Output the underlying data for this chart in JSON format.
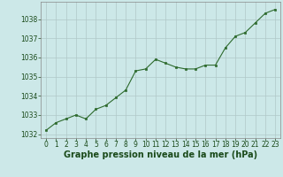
{
  "x": [
    0,
    1,
    2,
    3,
    4,
    5,
    6,
    7,
    8,
    9,
    10,
    11,
    12,
    13,
    14,
    15,
    16,
    17,
    18,
    19,
    20,
    21,
    22,
    23
  ],
  "y": [
    1032.2,
    1032.6,
    1032.8,
    1033.0,
    1032.8,
    1033.3,
    1033.5,
    1033.9,
    1034.3,
    1035.3,
    1035.4,
    1035.9,
    1035.7,
    1035.5,
    1035.4,
    1035.4,
    1035.6,
    1035.6,
    1036.5,
    1037.1,
    1037.3,
    1037.8,
    1038.3,
    1038.5
  ],
  "line_color": "#2d6a2d",
  "marker_color": "#2d6a2d",
  "bg_color": "#cce8e8",
  "grid_color": "#b0c8c8",
  "axis_label_color": "#1a4a1a",
  "xlabel": "Graphe pression niveau de la mer (hPa)",
  "ylim": [
    1031.8,
    1038.9
  ],
  "yticks": [
    1032,
    1033,
    1034,
    1035,
    1036,
    1037,
    1038
  ],
  "xticks": [
    0,
    1,
    2,
    3,
    4,
    5,
    6,
    7,
    8,
    9,
    10,
    11,
    12,
    13,
    14,
    15,
    16,
    17,
    18,
    19,
    20,
    21,
    22,
    23
  ],
  "tick_fontsize": 5.5,
  "xlabel_fontsize": 7.0,
  "border_color": "#888888",
  "marker_size": 2.0,
  "line_width": 0.8
}
